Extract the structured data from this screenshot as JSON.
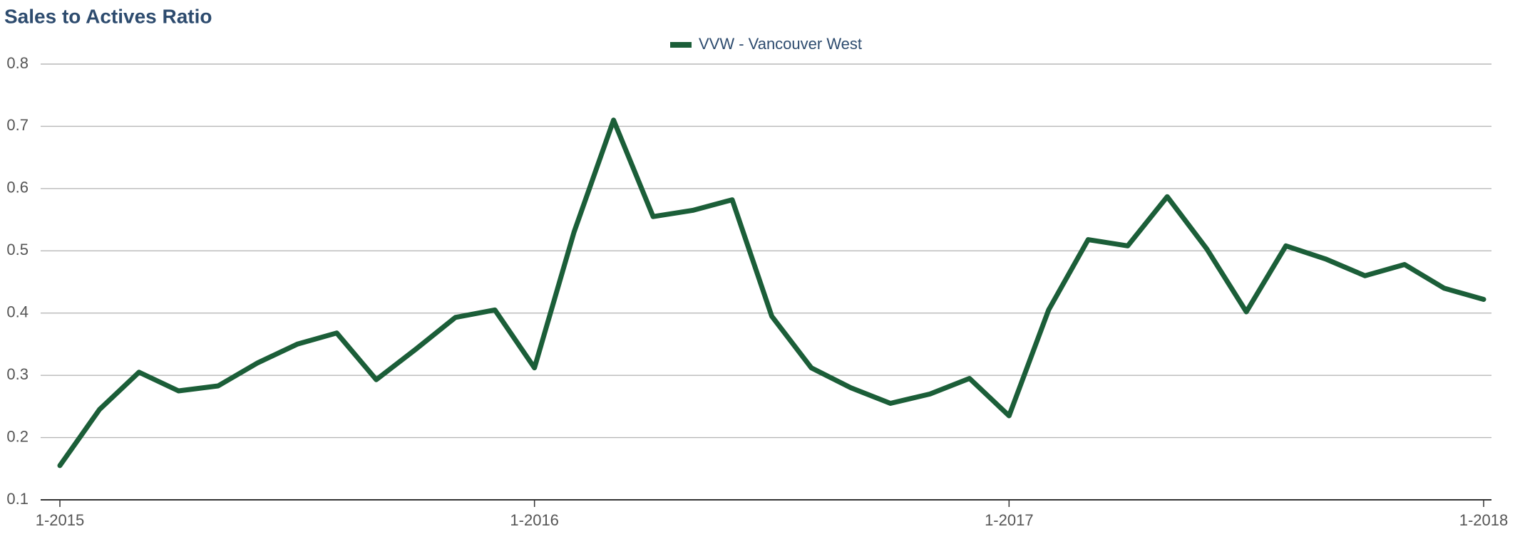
{
  "chart_data": {
    "type": "line",
    "title": "Sales to Actives Ratio",
    "categories": [
      "1-2015",
      null,
      null,
      null,
      null,
      null,
      null,
      null,
      null,
      null,
      null,
      null,
      "1-2016",
      null,
      null,
      null,
      null,
      null,
      null,
      null,
      null,
      null,
      null,
      null,
      "1-2017",
      null,
      null,
      null,
      null,
      null,
      null,
      null,
      null,
      null,
      null,
      null,
      "1-2018"
    ],
    "series": [
      {
        "name": "VVW - Vancouver West",
        "color": "#1b5e38",
        "values": [
          0.155,
          0.245,
          0.305,
          0.275,
          0.283,
          0.32,
          0.35,
          0.368,
          0.293,
          0.342,
          0.393,
          0.405,
          0.312,
          0.53,
          0.71,
          0.555,
          0.565,
          0.582,
          0.395,
          0.312,
          0.28,
          0.255,
          0.27,
          0.295,
          0.235,
          0.405,
          0.518,
          0.508,
          0.587,
          0.503,
          0.402,
          0.508,
          0.487,
          0.46,
          0.478,
          0.44,
          0.422
        ]
      }
    ],
    "ylim": [
      0.1,
      0.8
    ],
    "yticks": [
      0.1,
      0.2,
      0.3,
      0.4,
      0.5,
      0.6,
      0.7,
      0.8
    ],
    "grid": true,
    "legend": "top"
  }
}
